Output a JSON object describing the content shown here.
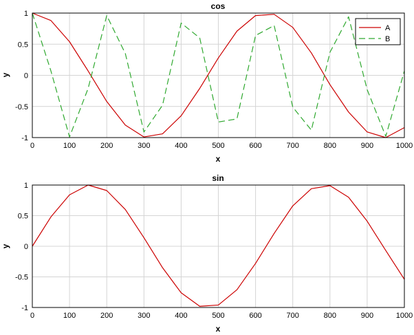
{
  "chart_data": [
    {
      "type": "line",
      "title": "cos",
      "xlabel": "x",
      "ylabel": "y",
      "xlim": [
        0,
        1000
      ],
      "ylim": [
        -1,
        1
      ],
      "grid": true,
      "legend_position": "top-right",
      "x_ticks": [
        "0",
        "100",
        "200",
        "300",
        "400",
        "500",
        "600",
        "700",
        "800",
        "900",
        "1000"
      ],
      "y_ticks": [
        "1",
        "0.5",
        "0",
        "-0.5",
        "-1"
      ],
      "sample_x": [
        0,
        50,
        100,
        150,
        200,
        250,
        300,
        350,
        400,
        450,
        500,
        550,
        600,
        650,
        700,
        750,
        800,
        850,
        900,
        950,
        1000
      ],
      "series": [
        {
          "name": "A",
          "color": "#cc0000",
          "dash": "solid",
          "y": [
            1.0,
            0.88,
            0.54,
            0.07,
            -0.42,
            -0.8,
            -0.99,
            -0.94,
            -0.65,
            -0.21,
            0.28,
            0.71,
            0.96,
            0.98,
            0.77,
            0.36,
            -0.15,
            -0.59,
            -0.91,
            -1.0,
            -0.84
          ]
        },
        {
          "name": "B",
          "color": "#2ea82e",
          "dash": "dashed",
          "y": [
            1.0,
            0.07,
            -0.99,
            -0.21,
            0.96,
            0.35,
            -0.91,
            -0.48,
            0.84,
            0.6,
            -0.75,
            -0.7,
            0.64,
            0.8,
            -0.51,
            -0.88,
            0.37,
            0.94,
            -0.23,
            -0.98,
            0.07
          ]
        }
      ]
    },
    {
      "type": "line",
      "title": "sin",
      "xlabel": "x",
      "ylabel": "y",
      "xlim": [
        0,
        1000
      ],
      "ylim": [
        -1,
        1
      ],
      "grid": true,
      "x_ticks": [
        "0",
        "100",
        "200",
        "300",
        "400",
        "500",
        "600",
        "700",
        "800",
        "900",
        "1000"
      ],
      "y_ticks": [
        "1",
        "0.5",
        "0",
        "-0.5",
        "-1"
      ],
      "sample_x": [
        0,
        50,
        100,
        150,
        200,
        250,
        300,
        350,
        400,
        450,
        500,
        550,
        600,
        650,
        700,
        750,
        800,
        850,
        900,
        950,
        1000
      ],
      "series": [
        {
          "color": "#cc0000",
          "dash": "solid",
          "y": [
            0.0,
            0.48,
            0.84,
            1.0,
            0.91,
            0.6,
            0.14,
            -0.35,
            -0.76,
            -0.98,
            -0.96,
            -0.71,
            -0.28,
            0.21,
            0.66,
            0.94,
            0.99,
            0.8,
            0.41,
            -0.07,
            -0.54
          ]
        }
      ]
    }
  ]
}
